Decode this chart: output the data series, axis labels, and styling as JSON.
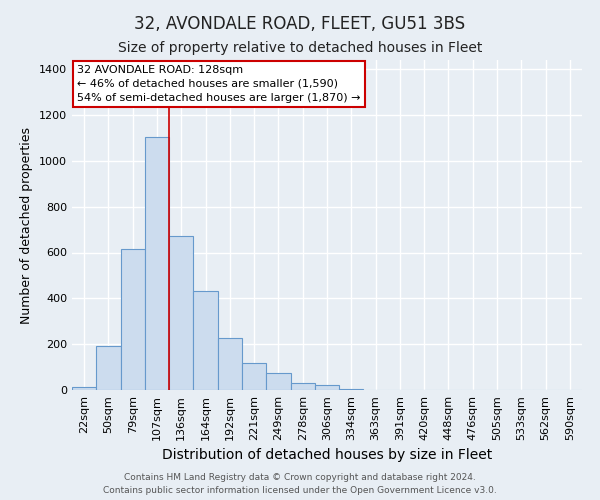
{
  "title": "32, AVONDALE ROAD, FLEET, GU51 3BS",
  "subtitle": "Size of property relative to detached houses in Fleet",
  "xlabel": "Distribution of detached houses by size in Fleet",
  "ylabel": "Number of detached properties",
  "bar_labels": [
    "22sqm",
    "50sqm",
    "79sqm",
    "107sqm",
    "136sqm",
    "164sqm",
    "192sqm",
    "221sqm",
    "249sqm",
    "278sqm",
    "306sqm",
    "334sqm",
    "363sqm",
    "391sqm",
    "420sqm",
    "448sqm",
    "476sqm",
    "505sqm",
    "533sqm",
    "562sqm",
    "590sqm"
  ],
  "bar_values": [
    15,
    190,
    615,
    1105,
    670,
    430,
    225,
    120,
    75,
    30,
    20,
    5,
    2,
    0,
    0,
    0,
    0,
    0,
    0,
    0,
    0
  ],
  "bar_fill_color": "#ccdcee",
  "bar_edge_color": "#6699cc",
  "marker_color": "#cc0000",
  "ylim": [
    0,
    1440
  ],
  "yticks": [
    0,
    200,
    400,
    600,
    800,
    1000,
    1200,
    1400
  ],
  "annotation_title": "32 AVONDALE ROAD: 128sqm",
  "annotation_line1": "← 46% of detached houses are smaller (1,590)",
  "annotation_line2": "54% of semi-detached houses are larger (1,870) →",
  "annotation_box_color": "#ffffff",
  "annotation_border_color": "#cc0000",
  "footer_line1": "Contains HM Land Registry data © Crown copyright and database right 2024.",
  "footer_line2": "Contains public sector information licensed under the Open Government Licence v3.0.",
  "background_color": "#e8eef4",
  "grid_color": "#ffffff",
  "title_fontsize": 12,
  "subtitle_fontsize": 10,
  "xlabel_fontsize": 10,
  "ylabel_fontsize": 9,
  "tick_fontsize": 8,
  "footer_fontsize": 6.5
}
